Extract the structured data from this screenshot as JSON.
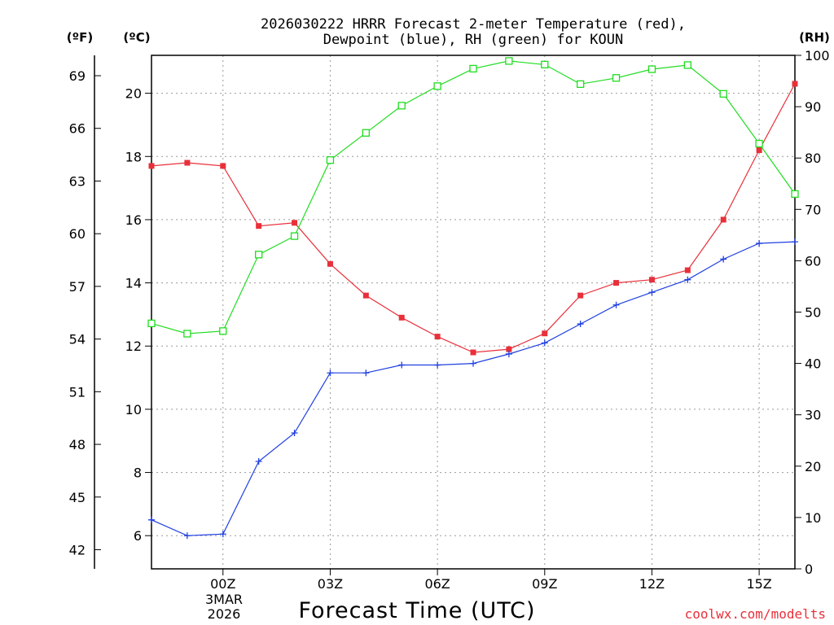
{
  "chart_data": {
    "type": "line",
    "title_line1": "2026030222 HRRR Forecast 2-meter Temperature (red),",
    "title_line2": "Dewpoint (blue), RH (green) for KOUN",
    "xlabel": "Forecast Time (UTC)",
    "credit": "coolwx.com/modelts",
    "unit_f": "(ºF)",
    "unit_c": "(ºC)",
    "unit_rh": "(RH)",
    "x": [
      -2,
      -1,
      0,
      1,
      2,
      3,
      4,
      5,
      6,
      7,
      8,
      9,
      10,
      11,
      12,
      13,
      14,
      15,
      16
    ],
    "xlim": [
      -2,
      16
    ],
    "x_ticks": [
      {
        "value": 0,
        "label": "00Z"
      },
      {
        "value": 3,
        "label": "03Z"
      },
      {
        "value": 6,
        "label": "06Z"
      },
      {
        "value": 9,
        "label": "09Z"
      },
      {
        "value": 12,
        "label": "12Z"
      },
      {
        "value": 15,
        "label": "15Z"
      }
    ],
    "date_line1": "3MAR",
    "date_line2": "2026",
    "ylim_c": [
      4.95,
      21.2
    ],
    "c_ticks": [
      "6",
      "8",
      "10",
      "12",
      "14",
      "16",
      "18",
      "20"
    ],
    "f_ticks": [
      "42",
      "45",
      "48",
      "51",
      "54",
      "57",
      "60",
      "63",
      "66",
      "69"
    ],
    "ylim_rh": [
      0,
      100
    ],
    "rh_ticks": [
      "0",
      "10",
      "20",
      "30",
      "40",
      "50",
      "60",
      "70",
      "80",
      "90",
      "100"
    ],
    "series": [
      {
        "name": "Temperature (°C)",
        "color": "#e8303a",
        "marker": "filled-square",
        "axis": "c",
        "values": [
          17.7,
          17.8,
          17.7,
          15.8,
          15.9,
          14.6,
          13.6,
          12.9,
          12.3,
          11.8,
          11.9,
          12.4,
          13.6,
          14.0,
          14.1,
          14.4,
          16.0,
          18.2,
          20.3
        ]
      },
      {
        "name": "Dewpoint (°C)",
        "color": "#2040e0",
        "marker": "plus",
        "axis": "c",
        "values": [
          6.5,
          6.0,
          6.05,
          8.35,
          9.25,
          11.15,
          11.15,
          11.4,
          11.4,
          11.45,
          11.75,
          12.1,
          12.7,
          13.3,
          13.7,
          14.1,
          14.75,
          15.25,
          15.3
        ]
      },
      {
        "name": "RH (%)",
        "color": "#20dd20",
        "marker": "open-square",
        "axis": "rh",
        "values": [
          47.8,
          45.8,
          46.3,
          61.2,
          64.8,
          79.6,
          84.9,
          90.2,
          94.0,
          97.4,
          98.9,
          98.2,
          94.4,
          95.6,
          97.3,
          98.1,
          92.5,
          82.8,
          73.0
        ]
      }
    ]
  }
}
